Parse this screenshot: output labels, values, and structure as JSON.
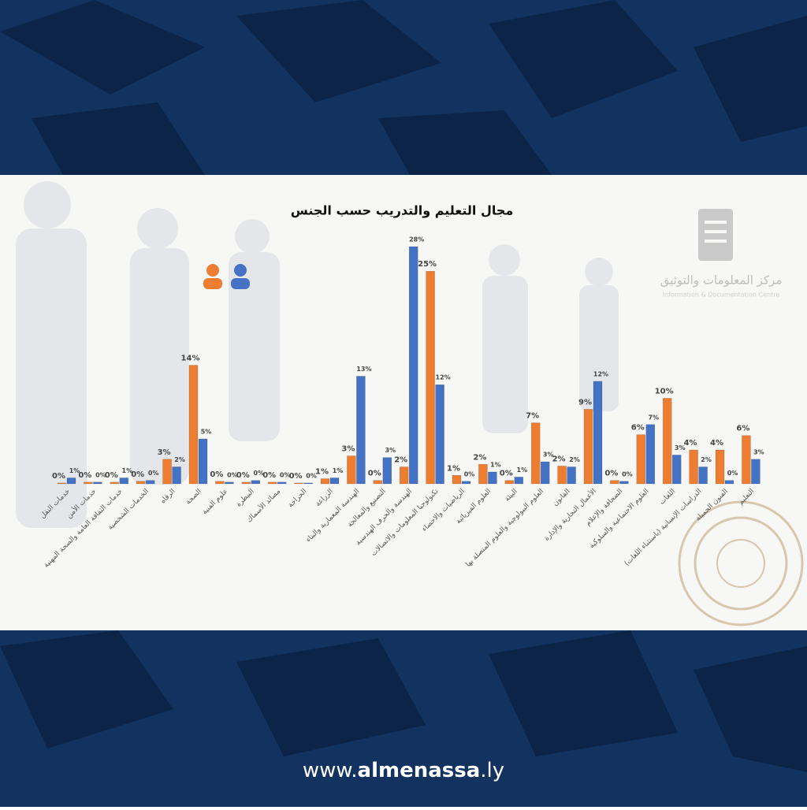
{
  "chart_data": {
    "type": "bar",
    "title": "مجال التعليم والتدريب حسب الجنس",
    "categories": [
      "خدمات النقل",
      "خدمات الأمن",
      "خدمات الثقافة العامة والصحة المهنية",
      "الخدمات الشخصية",
      "الرفاه",
      "الصحة",
      "علوم الفنية",
      "البيطرة",
      "مصائد الأسماك",
      "الحراجة",
      "الزراعة",
      "الهندسة المعمارية والبناء",
      "التصنيع والمعالجة",
      "الهندسة والحرف الهندسية",
      "تكنولوجيا المعلومات والاتصالات",
      "الرياضيات والاحصاء",
      "العلوم الفيزيائية",
      "البيئة",
      "العلوم البيولوجية والعلوم المتصلة بها",
      "القانون",
      "الأعمال التجارية والإدارة",
      "الصحافة والإعلام",
      "العلوم الاجتماعية والسلوكية",
      "اللغات",
      "الدراسات الإنسانية (باستثناء اللغات)",
      "الفنون الجميلة",
      "التعليم"
    ],
    "series": [
      {
        "color": "#ed7d31",
        "values": [
          0.1,
          0.2,
          0.2,
          0.3,
          2.9,
          14.0,
          0.3,
          0.2,
          0.2,
          0.1,
          0.6,
          3.3,
          0.4,
          2.0,
          25.1,
          1.0,
          2.3,
          0.4,
          7.2,
          2.1,
          8.8,
          0.4,
          5.8,
          10.1,
          4.0,
          4.0,
          5.7
        ],
        "value_labels": [
          "0%",
          "0%",
          "0%",
          "0%",
          "3%",
          "14%",
          "0%",
          "0%",
          "0%",
          "0%",
          "1%",
          "3%",
          "0%",
          "2%",
          "25%",
          "1%",
          "2%",
          "0%",
          "7%",
          "2%",
          "9%",
          "0%",
          "6%",
          "10%",
          "4%",
          "4%",
          "6%"
        ]
      },
      {
        "color": "#4472c4",
        "values": [
          0.7,
          0.2,
          0.7,
          0.4,
          2.0,
          5.3,
          0.2,
          0.4,
          0.2,
          0.1,
          0.7,
          12.7,
          3.1,
          28.0,
          11.7,
          0.3,
          1.4,
          0.8,
          2.6,
          2.0,
          12.1,
          0.3,
          7.0,
          3.4,
          2.0,
          0.4,
          2.9
        ],
        "value_labels": [
          "1%",
          "0%",
          "1%",
          "0%",
          "2%",
          "5%",
          "0%",
          "0%",
          "0%",
          "0%",
          "1%",
          "13%",
          "3%",
          "28%",
          "12%",
          "0%",
          "1%",
          "1%",
          "3%",
          "2%",
          "12%",
          "0%",
          "7%",
          "3%",
          "2%",
          "0%",
          "3%"
        ]
      }
    ]
  },
  "logo": {
    "title": "مركز المعلومات والتوثيق",
    "subtitle": "Information & Documentation Centre"
  },
  "footer": [
    "www.",
    "almenassa",
    ".ly"
  ]
}
